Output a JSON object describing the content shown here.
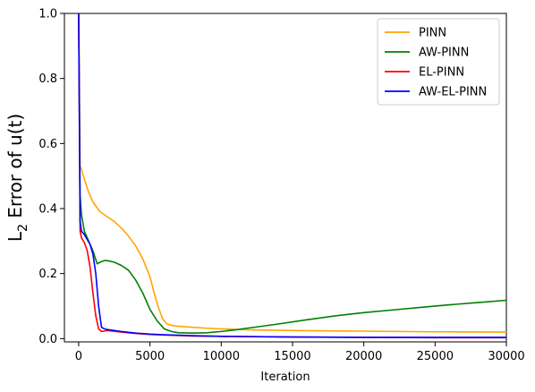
{
  "chart_data": {
    "type": "line",
    "title": "",
    "xlabel": "Iteration",
    "ylabel": "L2 Error of u(t)",
    "ylabel_main": "L",
    "ylabel_sub": "2",
    "ylabel_rest": " Error of u(t)",
    "xlim": [
      -1000,
      30000
    ],
    "ylim": [
      -0.01,
      1.0
    ],
    "xticks": [
      0,
      5000,
      10000,
      15000,
      20000,
      25000,
      30000
    ],
    "yticks": [
      0.0,
      0.2,
      0.4,
      0.6,
      0.8,
      1.0
    ],
    "xtick_labels": [
      "0",
      "5000",
      "10000",
      "15000",
      "20000",
      "25000",
      "30000"
    ],
    "ytick_labels": [
      "0.0",
      "0.2",
      "0.4",
      "0.6",
      "0.8",
      "1.0"
    ],
    "grid": false,
    "legend_position": "top-right",
    "series": [
      {
        "name": "PINN",
        "color": "#ffa500",
        "x": [
          0,
          100,
          200,
          400,
          700,
          1000,
          1500,
          2000,
          2500,
          3000,
          3500,
          4000,
          4500,
          5000,
          5300,
          5600,
          5900,
          6200,
          6600,
          7000,
          8000,
          9000,
          10000,
          12000,
          15000,
          20000,
          25000,
          30000
        ],
        "y": [
          1.0,
          0.53,
          0.52,
          0.49,
          0.45,
          0.42,
          0.39,
          0.375,
          0.36,
          0.34,
          0.315,
          0.285,
          0.245,
          0.19,
          0.14,
          0.095,
          0.06,
          0.045,
          0.04,
          0.038,
          0.035,
          0.032,
          0.03,
          0.027,
          0.025,
          0.023,
          0.021,
          0.02
        ]
      },
      {
        "name": "AW-PINN",
        "color": "#008000",
        "x": [
          0,
          100,
          200,
          400,
          600,
          800,
          1000,
          1300,
          1500,
          1800,
          2000,
          2500,
          3000,
          3500,
          4000,
          4500,
          5000,
          5500,
          6000,
          6500,
          7000,
          8000,
          9000,
          10000,
          11000,
          12000,
          14000,
          16000,
          18000,
          20000,
          22000,
          24000,
          26000,
          28000,
          30000
        ],
        "y": [
          1.0,
          0.44,
          0.38,
          0.33,
          0.31,
          0.29,
          0.27,
          0.23,
          0.235,
          0.24,
          0.24,
          0.235,
          0.225,
          0.21,
          0.18,
          0.14,
          0.09,
          0.055,
          0.03,
          0.022,
          0.018,
          0.017,
          0.018,
          0.022,
          0.027,
          0.033,
          0.045,
          0.058,
          0.07,
          0.08,
          0.088,
          0.096,
          0.104,
          0.111,
          0.118
        ]
      },
      {
        "name": "EL-PINN",
        "color": "#ff0000",
        "x": [
          0,
          100,
          200,
          400,
          600,
          800,
          1000,
          1200,
          1400,
          1600,
          1800,
          2000,
          3000,
          4000,
          5000,
          6000,
          8000,
          10000,
          15000,
          20000,
          25000,
          30000
        ],
        "y": [
          1.0,
          0.33,
          0.31,
          0.295,
          0.27,
          0.22,
          0.14,
          0.07,
          0.03,
          0.022,
          0.023,
          0.025,
          0.02,
          0.016,
          0.013,
          0.011,
          0.008,
          0.007,
          0.005,
          0.004,
          0.003,
          0.003
        ]
      },
      {
        "name": "AW-EL-PINN",
        "color": "#0000ff",
        "x": [
          0,
          100,
          200,
          400,
          600,
          800,
          1000,
          1200,
          1400,
          1600,
          1800,
          2000,
          3000,
          4000,
          5000,
          6000,
          8000,
          10000,
          15000,
          20000,
          25000,
          30000
        ],
        "y": [
          1.0,
          0.36,
          0.33,
          0.32,
          0.305,
          0.29,
          0.26,
          0.2,
          0.1,
          0.035,
          0.03,
          0.028,
          0.022,
          0.017,
          0.014,
          0.012,
          0.009,
          0.007,
          0.005,
          0.004,
          0.004,
          0.004
        ]
      }
    ]
  }
}
